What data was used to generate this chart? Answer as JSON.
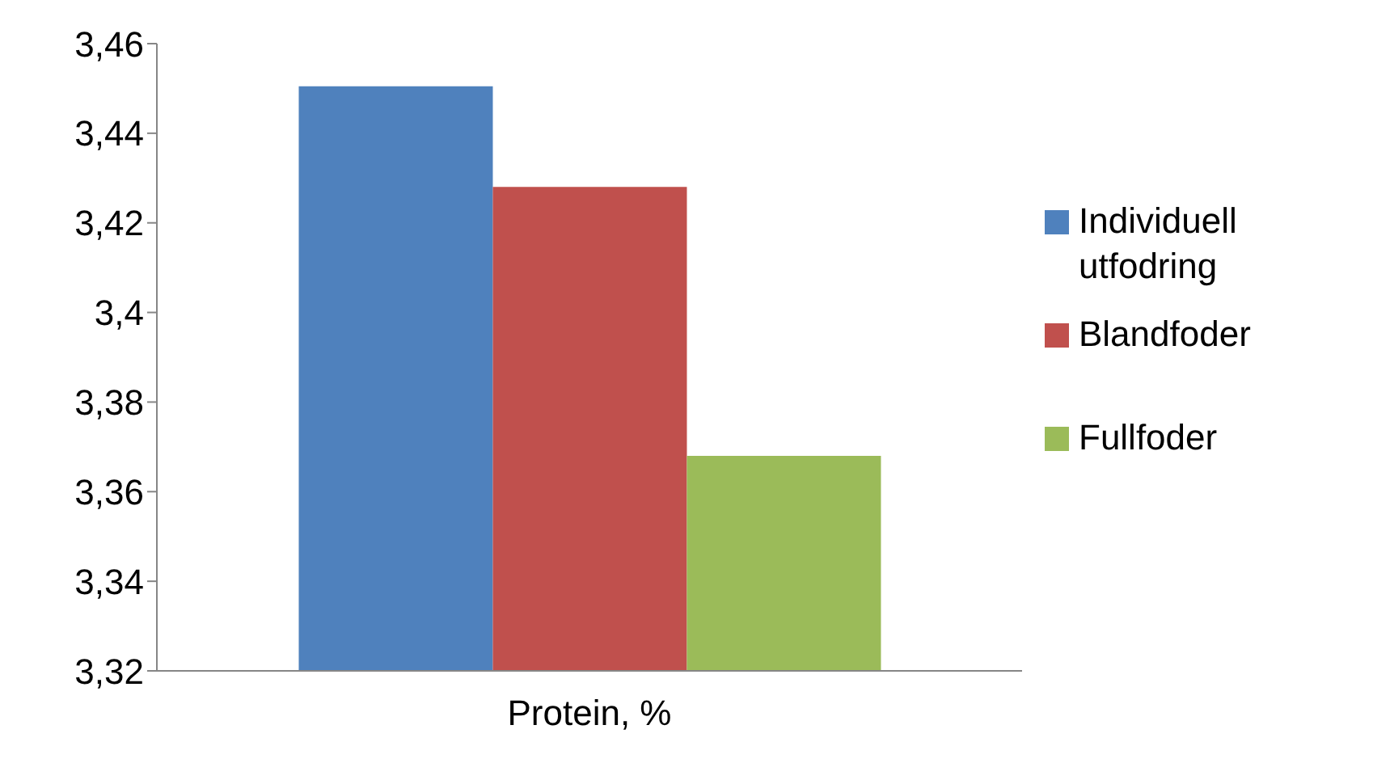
{
  "chart_data": {
    "type": "bar",
    "categories": [
      "Protein, %"
    ],
    "series": [
      {
        "name": "Individuell utfodring",
        "color": "#4f81bd",
        "values": [
          3.4505
        ]
      },
      {
        "name": "Blandfoder",
        "color": "#c0504d",
        "values": [
          3.428
        ]
      },
      {
        "name": "Fullfoder",
        "color": "#9bbb59",
        "values": [
          3.368
        ]
      }
    ],
    "ylim": [
      3.32,
      3.46
    ],
    "yticks": [
      {
        "value": 3.32,
        "label": "3,32"
      },
      {
        "value": 3.34,
        "label": "3,34"
      },
      {
        "value": 3.36,
        "label": "3,36"
      },
      {
        "value": 3.38,
        "label": "3,38"
      },
      {
        "value": 3.4,
        "label": "3,4"
      },
      {
        "value": 3.42,
        "label": "3,42"
      },
      {
        "value": 3.44,
        "label": "3,44"
      },
      {
        "value": 3.46,
        "label": "3,46"
      }
    ],
    "grid": false,
    "legend": "right"
  }
}
